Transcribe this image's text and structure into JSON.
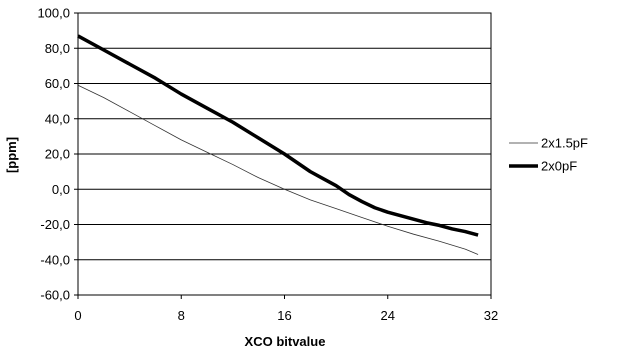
{
  "chart_data": {
    "type": "line",
    "title": "",
    "xlabel": "XCO bitvalue",
    "ylabel": "[ppm]",
    "xlim": [
      0,
      32
    ],
    "ylim": [
      -60,
      100
    ],
    "xticks": [
      0,
      8,
      16,
      24,
      32
    ],
    "xtick_labels": [
      "0",
      "8",
      "16",
      "24",
      "32"
    ],
    "yticks": [
      100,
      80,
      60,
      40,
      20,
      0,
      -20,
      -40,
      -60
    ],
    "ytick_labels": [
      "100,0",
      "80,0",
      "60,0",
      "40,0",
      "20,0",
      "0,0",
      "-20,0",
      "-40,0",
      "-60,0"
    ],
    "grid": "horizontal",
    "legend_position": "right",
    "series": [
      {
        "name": "2x1.5pF",
        "color": "#000000",
        "line_style": "thin",
        "x": [
          0,
          2,
          4,
          6,
          8,
          10,
          12,
          14,
          16,
          18,
          20,
          22,
          24,
          26,
          28,
          30,
          31
        ],
        "y": [
          59,
          52,
          44,
          36,
          28,
          21,
          14,
          6.5,
          0,
          -6,
          -11,
          -16,
          -21,
          -25.5,
          -29.5,
          -34,
          -37
        ]
      },
      {
        "name": "2x0pF",
        "color": "#000000",
        "line_style": "thick",
        "x": [
          0,
          2,
          4,
          6,
          8,
          10,
          12,
          14,
          16,
          18,
          19,
          20,
          21,
          22,
          23,
          24,
          25,
          26,
          27,
          28,
          29,
          30,
          31
        ],
        "y": [
          87,
          79,
          71,
          63,
          54,
          46,
          38,
          29,
          20,
          10,
          6,
          2,
          -3,
          -7,
          -10.5,
          -13,
          -15,
          -17,
          -19,
          -20.5,
          -22.5,
          -24,
          -26
        ]
      }
    ]
  }
}
